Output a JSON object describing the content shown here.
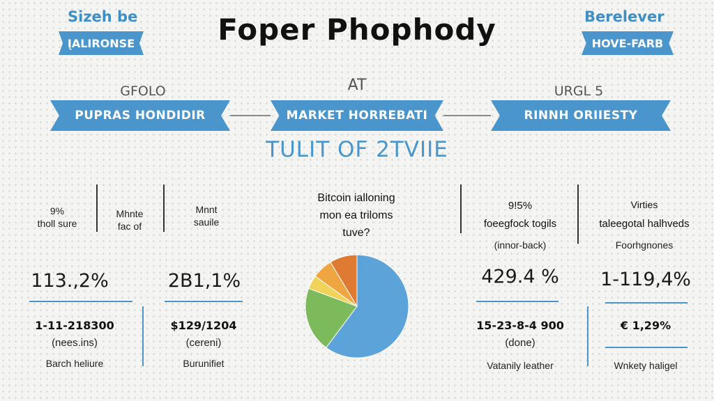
{
  "title": "Foper Phophody",
  "top_left": {
    "heading": "Sizeh be",
    "ribbon": "ĮALIRONSE"
  },
  "top_right": {
    "heading": "Berelever",
    "ribbon": "HOVE-FARB"
  },
  "ribbons": [
    {
      "above": "GFOLO",
      "label": "PUPRAS HONDIDIR"
    },
    {
      "above": "AT",
      "label": "MARKET HORREBATI"
    },
    {
      "above": "URGL 5",
      "label": "RINNH ORIIESTY"
    }
  ],
  "subtitle": "TULIT OF 2TVIIE",
  "left_stats": [
    {
      "label_line1": "9%",
      "label_line2": "tholl sure",
      "value": "113.,2%",
      "mid": "1-11-218300",
      "paren": "(nees.ins)",
      "foot": "Barch heliure"
    },
    {
      "label_line1": "Mhnte",
      "label_line2": "fac of",
      "value": "",
      "mid": "",
      "paren": "",
      "foot": ""
    },
    {
      "label_line1": "Mnnt",
      "label_line2": "sauile",
      "value": "2B1,1%",
      "mid": "$129/1204",
      "paren": "(cereni)",
      "foot": "Burunifiet"
    }
  ],
  "chart_question": [
    "Bitcoin ialloning",
    "mon ea triloms",
    "tuve?"
  ],
  "right_stats": [
    {
      "label_line1": "9!5%",
      "label_line2": "foeegfock togils",
      "label_line3": "(innor-back)",
      "value": "429.4 %",
      "mid": "15-23-8-4 900",
      "paren": "(done)",
      "foot": "Vatanily leather"
    },
    {
      "label_line1": "Virties",
      "label_line2": "taleegotal halhveds",
      "label_line3": "Foorhgnones",
      "value": "1-119,4%",
      "mid": "€ 1,29%",
      "paren": "",
      "foot": "Wnkety haligel"
    }
  ],
  "chart_data": {
    "type": "pie",
    "title": "Bitcoin ialloning mon ea triloms tuve?",
    "categories": [
      "",
      "",
      "",
      "",
      ""
    ],
    "values": [
      56,
      19,
      4,
      6,
      8
    ],
    "colors": [
      "#5ba3d9",
      "#7cba5b",
      "#f2d35a",
      "#f0a640",
      "#de7a32"
    ],
    "start_angle_deg": 0
  }
}
